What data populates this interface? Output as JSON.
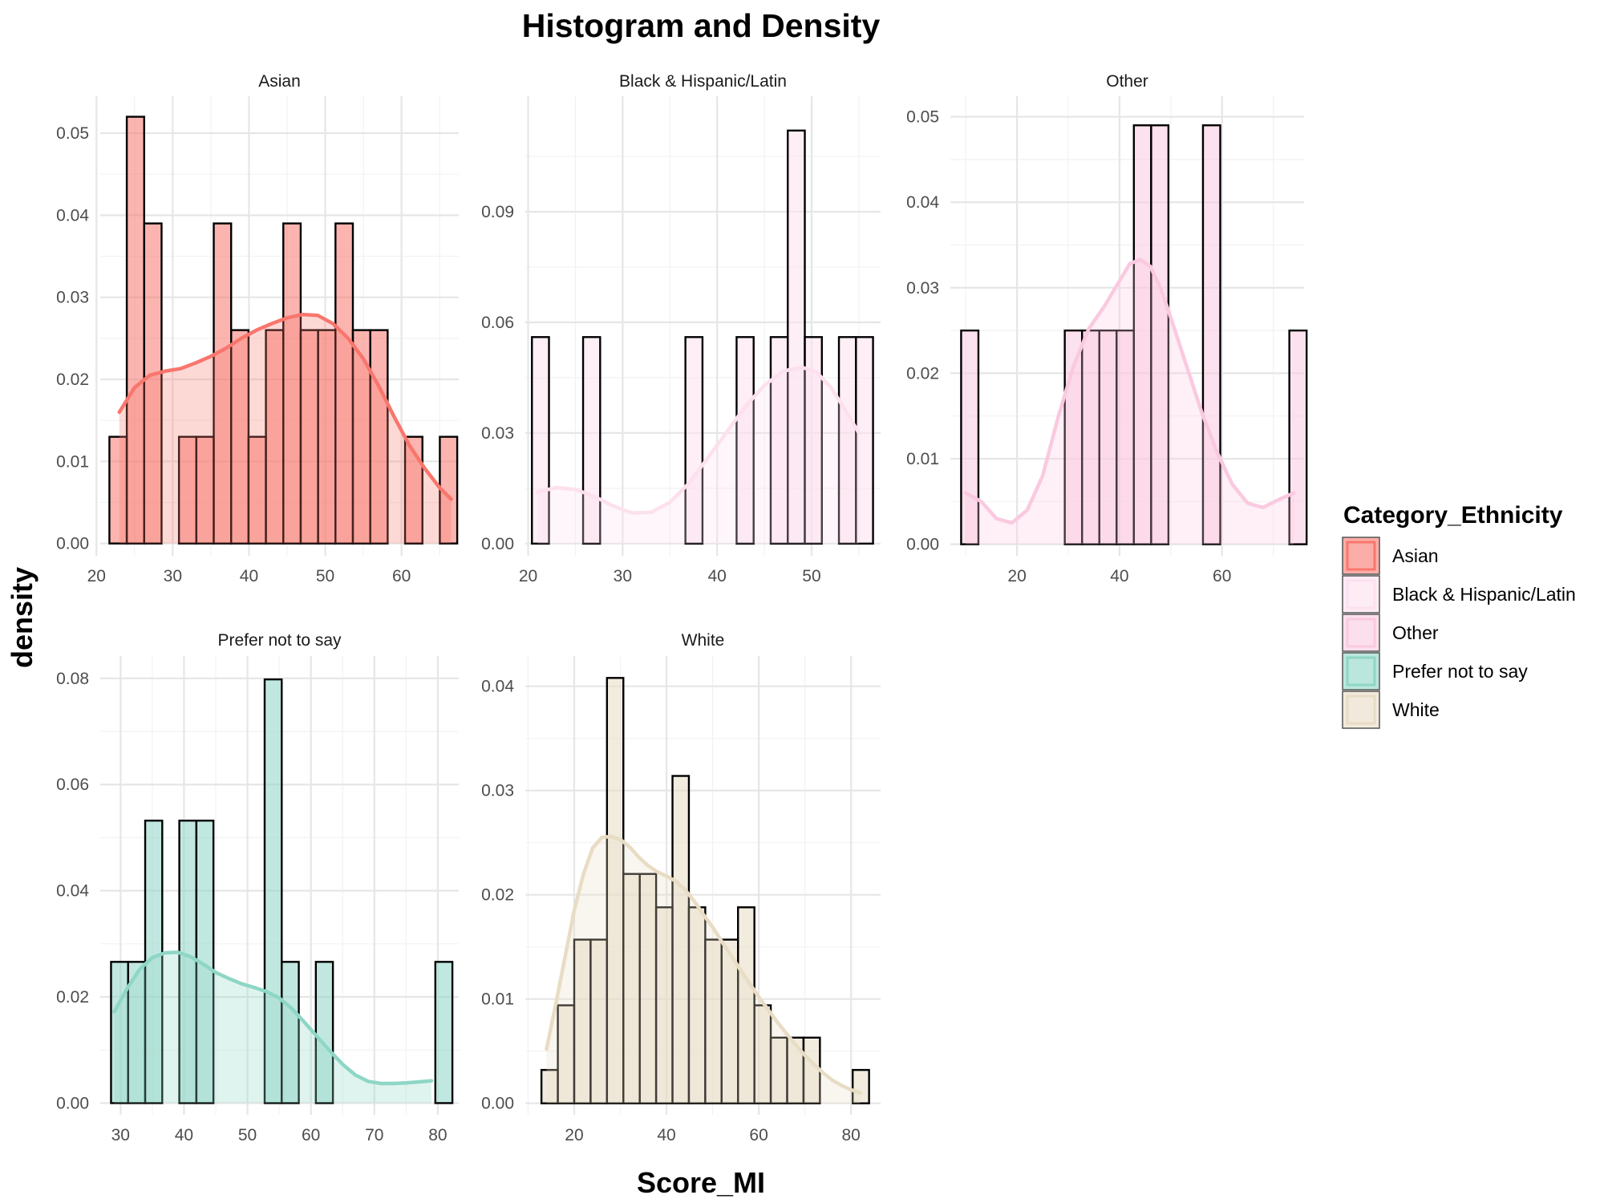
{
  "chart_data": {
    "type": "bar",
    "title": "Histogram and Density",
    "xlabel": "Score_MI",
    "ylabel": "density",
    "legend": {
      "title": "Category_Ethnicity",
      "position": "right",
      "entries": [
        {
          "label": "Asian",
          "color": "#f8766d"
        },
        {
          "label": "Black & Hispanic/Latin",
          "color": "#fde0ee"
        },
        {
          "label": "Other",
          "color": "#fac9e0"
        },
        {
          "label": "Prefer not to say",
          "color": "#8ed6c6"
        },
        {
          "label": "White",
          "color": "#e8dcc4"
        }
      ]
    },
    "grid": true,
    "panels": [
      {
        "name": "Asian",
        "color": "#f8766d",
        "xlim": [
          20.5,
          67.5
        ],
        "ylim": [
          -0.0015,
          0.0545
        ],
        "xticks": [
          20,
          30,
          40,
          50,
          60
        ],
        "yticks": [
          0.0,
          0.01,
          0.02,
          0.03,
          0.04,
          0.05
        ],
        "ytick_labels": [
          "0.00",
          "0.01",
          "0.02",
          "0.03",
          "0.04",
          "0.05"
        ],
        "bins": {
          "start": 21.7,
          "width": 2.28,
          "heights": [
            0.013,
            0.052,
            0.039,
            0.0,
            0.013,
            0.013,
            0.039,
            0.026,
            0.013,
            0.026,
            0.039,
            0.026,
            0.026,
            0.039,
            0.026,
            0.026,
            0.0,
            0.013,
            0.0,
            0.013
          ]
        },
        "density": {
          "x": [
            23,
            25,
            27,
            29,
            31,
            33,
            35,
            37,
            39,
            41,
            43,
            45,
            47,
            49,
            51,
            53,
            55,
            57,
            59,
            61,
            63,
            65,
            66.5
          ],
          "y": [
            0.016,
            0.019,
            0.0205,
            0.021,
            0.0213,
            0.022,
            0.0228,
            0.0238,
            0.025,
            0.026,
            0.0268,
            0.0275,
            0.0279,
            0.0278,
            0.0268,
            0.025,
            0.0225,
            0.0192,
            0.0155,
            0.012,
            0.0092,
            0.0068,
            0.0054
          ]
        }
      },
      {
        "name": "Black & Hispanic/Latin",
        "color": "#fde0ee",
        "xlim": [
          19.7,
          57.3
        ],
        "ylim": [
          -0.0033,
          0.1213
        ],
        "xticks": [
          20,
          30,
          40,
          50
        ],
        "yticks": [
          0.0,
          0.03,
          0.06,
          0.09
        ],
        "ytick_labels": [
          "0.00",
          "0.03",
          "0.06",
          "0.09"
        ],
        "bins": {
          "start": 20.4,
          "width": 1.805,
          "heights": [
            0.056,
            0.0,
            0.0,
            0.056,
            0.0,
            0.0,
            0.0,
            0.0,
            0.0,
            0.056,
            0.0,
            0.0,
            0.056,
            0.0,
            0.056,
            0.112,
            0.056,
            0.0,
            0.056,
            0.056
          ]
        },
        "density": {
          "x": [
            21,
            23,
            25,
            27,
            29,
            31,
            33,
            35,
            37,
            39,
            41,
            43,
            45,
            47,
            49,
            50.5,
            52,
            53.5,
            55
          ],
          "y": [
            0.014,
            0.0152,
            0.0147,
            0.0128,
            0.0102,
            0.0083,
            0.0085,
            0.0112,
            0.0163,
            0.0232,
            0.0302,
            0.0372,
            0.0429,
            0.0468,
            0.0478,
            0.0465,
            0.0425,
            0.0365,
            0.03
          ]
        }
      },
      {
        "name": "Other",
        "color": "#fac9e0",
        "xlim": [
          7.0,
          76.0
        ],
        "ylim": [
          -0.00135,
          0.0524
        ],
        "xticks": [
          20,
          40,
          60
        ],
        "yticks": [
          0.0,
          0.01,
          0.02,
          0.03,
          0.04,
          0.05
        ],
        "ytick_labels": [
          "0.00",
          "0.01",
          "0.02",
          "0.03",
          "0.04",
          "0.05"
        ],
        "bins": {
          "start": 9.1,
          "width": 3.37,
          "heights": [
            0.025,
            0.0,
            0.0,
            0.0,
            0.0,
            0.0,
            0.025,
            0.025,
            0.025,
            0.025,
            0.049,
            0.049,
            0.0,
            0.0,
            0.049,
            0.0,
            0.0,
            0.0,
            0.0,
            0.025
          ]
        },
        "density": {
          "x": [
            10,
            13,
            16,
            19,
            22,
            25,
            28,
            31,
            34,
            37,
            40,
            42,
            44,
            46,
            48,
            50,
            53,
            56,
            59,
            62,
            65,
            68,
            71,
            74
          ],
          "y": [
            0.006,
            0.005,
            0.003,
            0.0025,
            0.004,
            0.008,
            0.0148,
            0.0208,
            0.0252,
            0.0278,
            0.0308,
            0.0328,
            0.0333,
            0.0325,
            0.03,
            0.0265,
            0.021,
            0.0155,
            0.0108,
            0.007,
            0.0048,
            0.0043,
            0.0052,
            0.006
          ]
        }
      },
      {
        "name": "Prefer not to say",
        "color": "#8ed6c6",
        "xlim": [
          26.8,
          83.3
        ],
        "ylim": [
          -0.0022,
          0.0842
        ],
        "xticks": [
          30,
          40,
          50,
          60,
          70,
          80
        ],
        "yticks": [
          0.0,
          0.02,
          0.04,
          0.06,
          0.08
        ],
        "ytick_labels": [
          "0.00",
          "0.02",
          "0.04",
          "0.06",
          "0.08"
        ],
        "bins": {
          "start": 28.5,
          "width": 2.69,
          "heights": [
            0.0266,
            0.0266,
            0.0532,
            0.0,
            0.0532,
            0.0532,
            0.0,
            0.0,
            0.0,
            0.0798,
            0.0266,
            0.0,
            0.0266,
            0.0,
            0.0,
            0.0,
            0.0,
            0.0,
            0.0,
            0.0266
          ]
        },
        "density": {
          "x": [
            29,
            31,
            33,
            35,
            37,
            39,
            41,
            43,
            45,
            47,
            49,
            51,
            53,
            55,
            57,
            59,
            61,
            63,
            65,
            67,
            69,
            71,
            73,
            75,
            77,
            79
          ],
          "y": [
            0.0172,
            0.0215,
            0.0252,
            0.0274,
            0.0283,
            0.0284,
            0.0276,
            0.0262,
            0.0246,
            0.0235,
            0.0225,
            0.0218,
            0.021,
            0.0198,
            0.0178,
            0.0152,
            0.0125,
            0.0098,
            0.0073,
            0.0053,
            0.0041,
            0.0037,
            0.0037,
            0.0038,
            0.004,
            0.0042
          ]
        }
      },
      {
        "name": "White",
        "color": "#e8dcc4",
        "xlim": [
          9.4,
          86.4
        ],
        "ylim": [
          -0.0011,
          0.0429
        ],
        "xticks": [
          20,
          40,
          60,
          80
        ],
        "yticks": [
          0.0,
          0.01,
          0.02,
          0.03,
          0.04
        ],
        "ytick_labels": [
          "0.00",
          "0.01",
          "0.02",
          "0.03",
          "0.04"
        ],
        "bins": {
          "start": 12.9,
          "width": 3.55,
          "heights": [
            0.0032,
            0.0094,
            0.0157,
            0.0157,
            0.0408,
            0.022,
            0.022,
            0.0188,
            0.0314,
            0.0188,
            0.0157,
            0.0157,
            0.0188,
            0.0094,
            0.0063,
            0.0063,
            0.0063,
            0.0,
            0.0,
            0.0032
          ]
        },
        "density": {
          "x": [
            14,
            16,
            18,
            20,
            22,
            24,
            26,
            28,
            30,
            32,
            34,
            36,
            38,
            40,
            42,
            44,
            46,
            48,
            50,
            52,
            54,
            56,
            58,
            60,
            62,
            64,
            66,
            68,
            70,
            72,
            74,
            76,
            78,
            80,
            82
          ],
          "y": [
            0.0052,
            0.0095,
            0.014,
            0.0185,
            0.022,
            0.0245,
            0.0255,
            0.0256,
            0.0253,
            0.0246,
            0.0236,
            0.0228,
            0.0222,
            0.0218,
            0.0213,
            0.0205,
            0.0194,
            0.0181,
            0.0169,
            0.0155,
            0.0142,
            0.0128,
            0.0115,
            0.0102,
            0.009,
            0.0078,
            0.0067,
            0.0056,
            0.0046,
            0.0037,
            0.0029,
            0.0022,
            0.0017,
            0.0013,
            0.001
          ]
        }
      }
    ]
  }
}
